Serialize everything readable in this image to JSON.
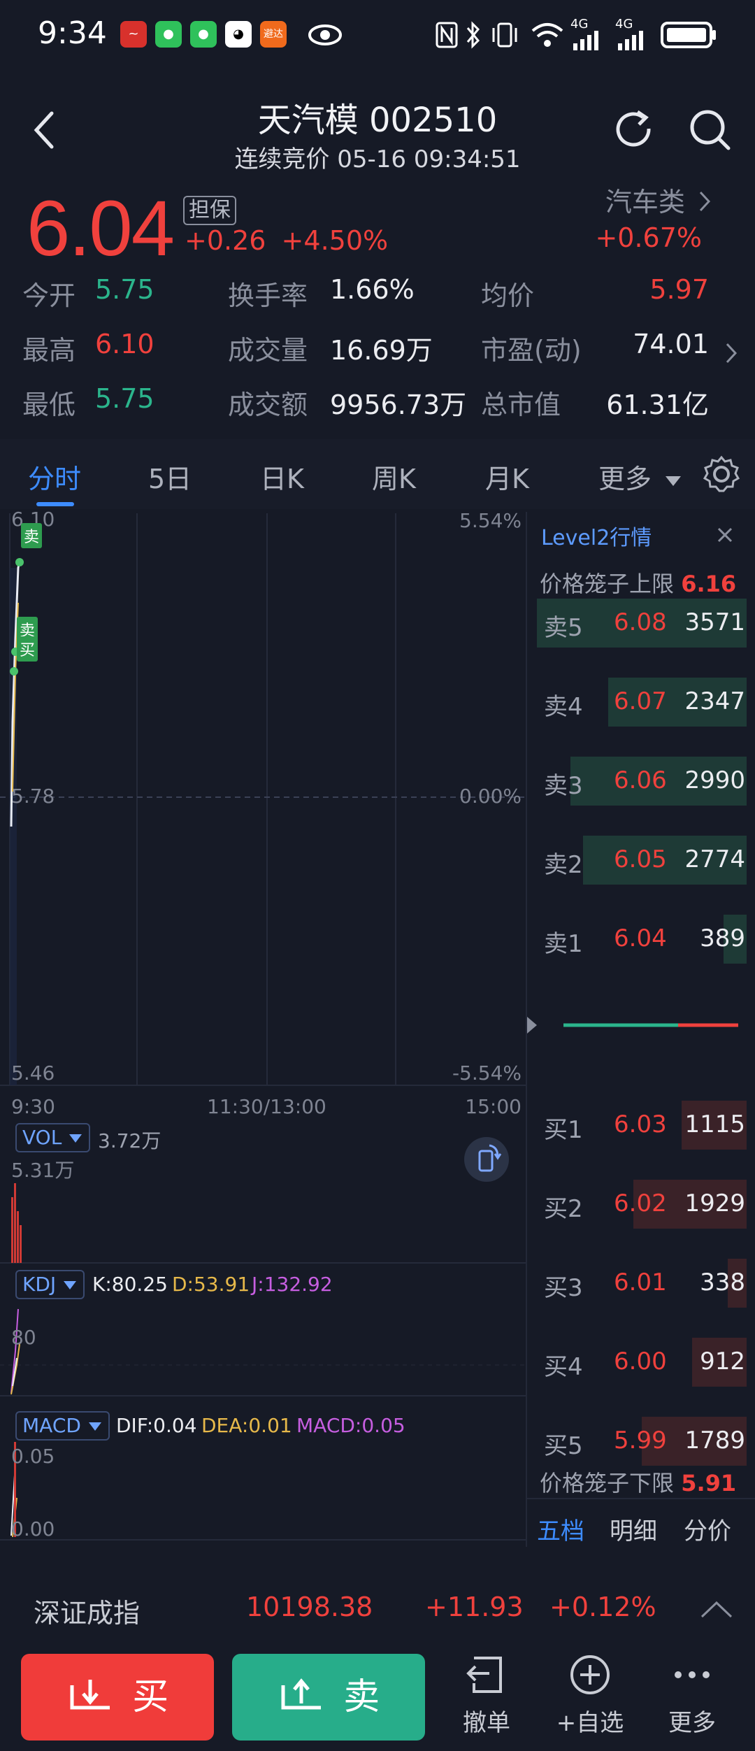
{
  "status_bar": {
    "time": "9:34",
    "network_1": "4G",
    "network_2": "4G",
    "app_icons": [
      "stock-app-icon",
      "wechat-icon",
      "wechat-icon",
      "qq-icon",
      "news-app-icon"
    ],
    "news_icon_label": "避达",
    "system_icons": [
      "eye-icon",
      "nfc-icon",
      "bluetooth-icon",
      "vibrate-icon",
      "wifi-icon",
      "signal-icon",
      "battery-icon"
    ]
  },
  "header": {
    "title": "天汽模 002510",
    "subtitle": "连续竞价 05-16 09:34:51"
  },
  "quote": {
    "price": "6.04",
    "badge": "担保",
    "change": "+0.26",
    "change_pct": "+4.50%",
    "sector": "汽车类",
    "sector_change": "+0.67%"
  },
  "stats": [
    [
      {
        "label": "今开",
        "value": "5.75"
      },
      {
        "label": "换手率",
        "value": "1.66%"
      },
      {
        "label": "均价",
        "value": "5.97"
      }
    ],
    [
      {
        "label": "最高",
        "value": "6.10"
      },
      {
        "label": "成交量",
        "value": "16.69万"
      },
      {
        "label": "市盈(动)",
        "value": "74.01"
      }
    ],
    [
      {
        "label": "最低",
        "value": "5.75"
      },
      {
        "label": "成交额",
        "value": "9956.73万"
      },
      {
        "label": "总市值",
        "value": "61.31亿"
      }
    ]
  ],
  "tabs": [
    "分时",
    "5日",
    "日K",
    "周K",
    "月K",
    "更多"
  ],
  "chart": {
    "price_high": "6.10",
    "price_mid": "5.78",
    "price_low": "5.46",
    "pct_high": "5.54%",
    "pct_mid": "0.00%",
    "pct_low": "-5.54%",
    "time_start": "9:30",
    "time_mid": "11:30/13:00",
    "time_end": "15:00",
    "marker_sell": "卖",
    "marker_buy": "买",
    "vol_label": "VOL",
    "vol_value": "3.72万",
    "vol_axis": "5.31万",
    "kdj_label": "KDJ",
    "kdj_k": "K:80.25",
    "kdj_d": "D:53.91",
    "kdj_j": "J:132.92",
    "kdj_axis": "80",
    "macd_label": "MACD",
    "macd_dif": "DIF:0.04",
    "macd_dea": "DEA:0.01",
    "macd_val": "MACD:0.05",
    "macd_axis_top": "0.05",
    "macd_axis_bottom": "0.00"
  },
  "order_book": {
    "title": "Level2行情",
    "upper_limit_label": "价格笼子上限",
    "upper_limit": "6.16",
    "lower_limit_label": "价格笼子下限",
    "lower_limit": "5.91",
    "asks": [
      {
        "label": "卖5",
        "price": "6.08",
        "volume": "3571",
        "fill": 1.0
      },
      {
        "label": "卖4",
        "price": "6.07",
        "volume": "2347",
        "fill": 0.66
      },
      {
        "label": "卖3",
        "price": "6.06",
        "volume": "2990",
        "fill": 0.84
      },
      {
        "label": "卖2",
        "price": "6.05",
        "volume": "2774",
        "fill": 0.78
      },
      {
        "label": "卖1",
        "price": "6.04",
        "volume": "389",
        "fill": 0.11
      }
    ],
    "bids": [
      {
        "label": "买1",
        "price": "6.03",
        "volume": "1115",
        "fill": 0.31
      },
      {
        "label": "买2",
        "price": "6.02",
        "volume": "1929",
        "fill": 0.54
      },
      {
        "label": "买3",
        "price": "6.01",
        "volume": "338",
        "fill": 0.09
      },
      {
        "label": "买4",
        "price": "6.00",
        "volume": "912",
        "fill": 0.26
      },
      {
        "label": "买5",
        "price": "5.99",
        "volume": "1789",
        "fill": 0.5
      }
    ],
    "tabs": [
      "五档",
      "明细",
      "分价"
    ]
  },
  "index_bar": {
    "name": "深证成指",
    "value": "10198.38",
    "change": "+11.93",
    "change_pct": "+0.12%"
  },
  "bottom_bar": {
    "buy_label": "买",
    "sell_label": "卖",
    "cancel_label": "撤单",
    "watchlist_label": "+自选",
    "more_label": "更多"
  },
  "colors": {
    "up": "#f0413d",
    "down": "#2bb58c",
    "accent": "#3d8cff",
    "background": "#161a26"
  }
}
